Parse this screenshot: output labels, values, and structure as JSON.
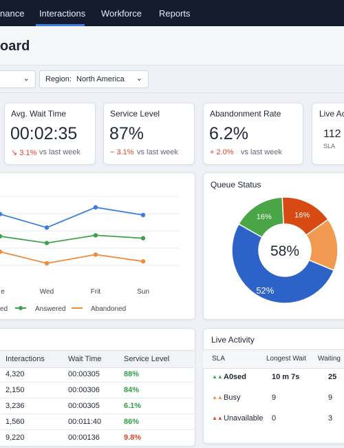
{
  "nav": {
    "tabs": [
      "nance",
      "Interactions",
      "Workforce",
      "Reports"
    ]
  },
  "header": {
    "title": "oard"
  },
  "filters": {
    "region_label": "Region:",
    "region_value": "North America"
  },
  "kpis": [
    {
      "title": "Avg. Wait Time",
      "value": "00:02:35",
      "change": "↘ 3.1%",
      "note": "vs last week"
    },
    {
      "title": "Service Level",
      "value": "87%",
      "change": "− 3.1%",
      "note": "vs last week"
    },
    {
      "title": "Abandonment Rate",
      "value": "6.2%",
      "change": "+ 2.0%",
      "note": "vs last week"
    },
    {
      "title": "Live Act",
      "value": "112",
      "note": "SLA"
    }
  ],
  "trend_chart": {
    "type": "line",
    "categories": [
      "e",
      "Wed",
      "Frit",
      "Sun"
    ],
    "series": [
      {
        "name": "ed",
        "color": "#3b7de0",
        "values": [
          71,
          57,
          78,
          70
        ]
      },
      {
        "name": "Answered",
        "color": "#3fa34d",
        "values": [
          48,
          41,
          49,
          46
        ]
      },
      {
        "name": "Abandoned",
        "color": "#f08a3c",
        "values": [
          32,
          20,
          29,
          22
        ]
      }
    ]
  },
  "queue_status": {
    "title": "Queue Status",
    "type": "pie",
    "center_label": "58%",
    "values": [
      16,
      16,
      52,
      16
    ],
    "value_labels": [
      "16%",
      null,
      "52%",
      "16%"
    ],
    "colors": [
      "#d84a14",
      "#f39a52",
      "#2d63c8",
      "#4aa546"
    ]
  },
  "table": {
    "headers": [
      "Interactions",
      "Wait Time",
      "Service Level"
    ],
    "rows": [
      [
        "4,320",
        "00:00305",
        "88%"
      ],
      [
        "2,150",
        "00:00306",
        "84%"
      ],
      [
        "3,236",
        "00:00305",
        "6.1%"
      ],
      [
        "1,560",
        "00:011:40",
        "86%"
      ],
      [
        "9,220",
        "00:00136",
        "9.8%"
      ]
    ],
    "service_level_colors": [
      "#2e9e4a",
      "#2e9e4a",
      "#2e9e4a",
      "#2e9e4a",
      "#d9452b"
    ]
  },
  "live_activity": {
    "title": "Live Activity",
    "headers": [
      "SLA",
      "Longest Wait",
      "Waiting"
    ],
    "rows": [
      [
        "A0sed",
        "10 m 7s",
        "25"
      ],
      [
        "Busy",
        "9",
        "9"
      ],
      [
        "Unavailable",
        "0",
        "3"
      ]
    ]
  }
}
